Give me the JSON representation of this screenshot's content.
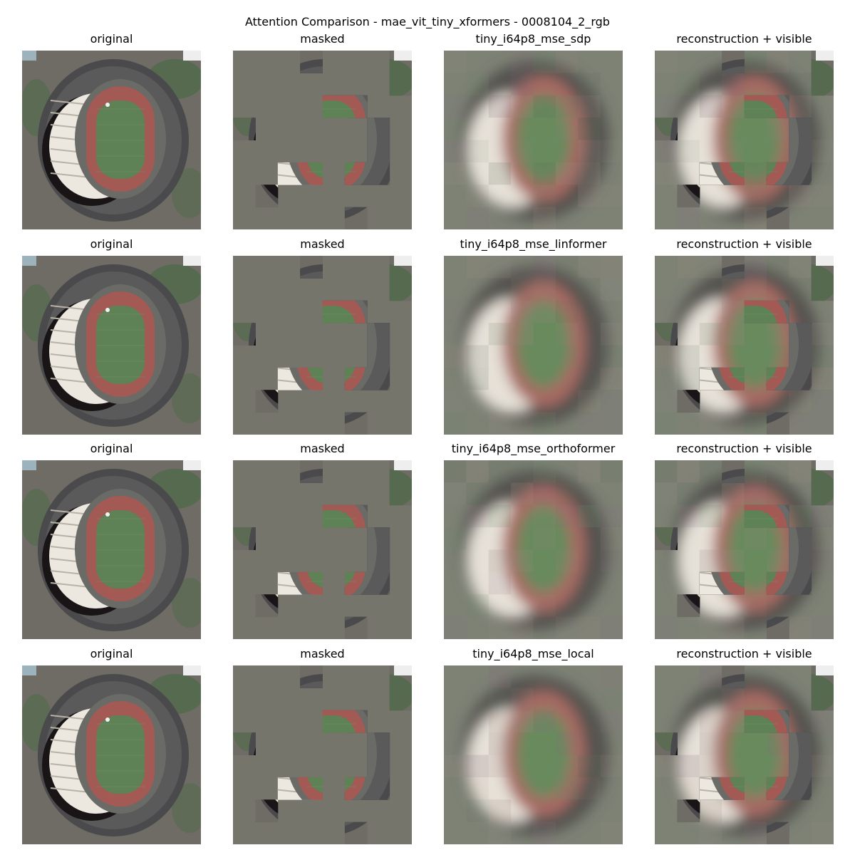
{
  "figure": {
    "title": "Attention Comparison - mae_vit_tiny_xformers - 0008104_2_rgb"
  },
  "rows": [
    {
      "panels": [
        {
          "title": "original",
          "kind": "original"
        },
        {
          "title": "masked",
          "kind": "masked"
        },
        {
          "title": "tiny_i64p8_mse_sdp",
          "kind": "recon"
        },
        {
          "title": "reconstruction + visible",
          "kind": "recon_visible"
        }
      ]
    },
    {
      "panels": [
        {
          "title": "original",
          "kind": "original"
        },
        {
          "title": "masked",
          "kind": "masked"
        },
        {
          "title": "tiny_i64p8_mse_linformer",
          "kind": "recon"
        },
        {
          "title": "reconstruction + visible",
          "kind": "recon_visible"
        }
      ]
    },
    {
      "panels": [
        {
          "title": "original",
          "kind": "original"
        },
        {
          "title": "masked",
          "kind": "masked"
        },
        {
          "title": "tiny_i64p8_mse_orthoformer",
          "kind": "recon"
        },
        {
          "title": "reconstruction + visible",
          "kind": "recon_visible"
        }
      ]
    },
    {
      "panels": [
        {
          "title": "original",
          "kind": "original"
        },
        {
          "title": "masked",
          "kind": "masked"
        },
        {
          "title": "tiny_i64p8_mse_local",
          "kind": "recon"
        },
        {
          "title": "reconstruction + visible",
          "kind": "recon_visible"
        }
      ]
    }
  ],
  "colors": {
    "mask_gray": "#75756b",
    "track": "#a35a55",
    "field": "#5e8155",
    "stands": "#ece8df",
    "shadow": "#191416",
    "ring": "#4a4a4c",
    "surroundings": "#6e6c64",
    "vegetation": "#4f6a4a",
    "recon_background": "#7d8275"
  }
}
